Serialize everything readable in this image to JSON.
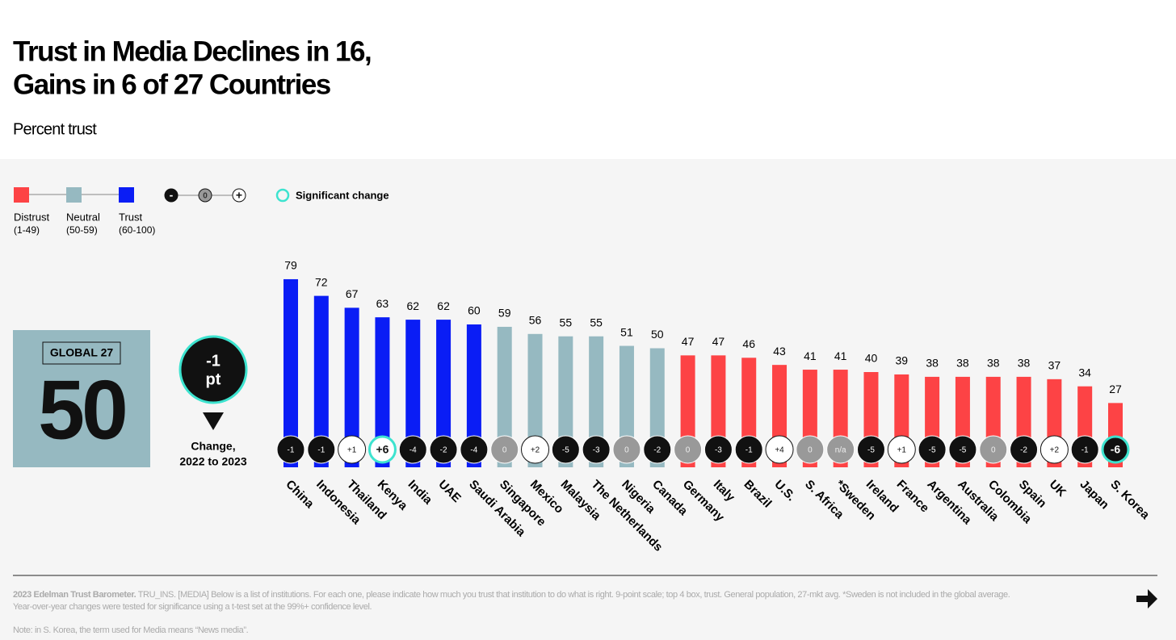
{
  "chart_data": {
    "type": "bar",
    "title_lines": [
      "Trust in Media Declines in 16,",
      "Gains in 6 of 27 Countries"
    ],
    "subtitle": "Percent trust",
    "legend": [
      {
        "name": "Distrust",
        "range": "(1-49)",
        "color": "#fd4345",
        "min": 1,
        "max": 49
      },
      {
        "name": "Neutral",
        "range": "(50-59)",
        "color": "#96b9c1",
        "min": 50,
        "max": 59
      },
      {
        "name": "Trust",
        "range": "(60-100)",
        "color": "#0a1df5",
        "min": 60,
        "max": 100
      }
    ],
    "change_legend": [
      "-",
      "0",
      "+"
    ],
    "significant_label": "Significant change",
    "significant_color": "#3de3cf",
    "global": {
      "label": "GLOBAL 27",
      "value": 50,
      "change": -1,
      "change_unit": "pt",
      "change_caption": [
        "Change,",
        "2022 to 2023"
      ]
    },
    "categories": [
      "China",
      "Indonesia",
      "Thailand",
      "Kenya",
      "India",
      "UAE",
      "Saudi Arabia",
      "Singapore",
      "Mexico",
      "Malaysia",
      "The Netherlands",
      "Nigeria",
      "Canada",
      "Germany",
      "Italy",
      "Brazil",
      "U.S.",
      "S. Africa",
      "*Sweden",
      "Ireland",
      "France",
      "Argentina",
      "Australia",
      "Colombia",
      "Spain",
      "UK",
      "Japan",
      "S. Korea"
    ],
    "values": [
      79,
      72,
      67,
      63,
      62,
      62,
      60,
      59,
      56,
      55,
      55,
      51,
      50,
      47,
      47,
      46,
      43,
      41,
      41,
      40,
      39,
      38,
      38,
      38,
      38,
      37,
      34,
      27
    ],
    "changes": [
      -1,
      -1,
      {
        "value": 1,
        "label": "+1"
      },
      {
        "value": 6,
        "label": "+6"
      },
      -4,
      -2,
      -4,
      0,
      {
        "value": 2,
        "label": "+2"
      },
      -5,
      -3,
      0,
      -2,
      0,
      -3,
      -1,
      {
        "value": 4,
        "label": "+4"
      },
      0,
      {
        "value": null,
        "label": "n/a"
      },
      -5,
      {
        "value": 1,
        "label": "+1"
      },
      -5,
      -5,
      0,
      -2,
      {
        "value": 2,
        "label": "+2"
      },
      -1,
      -6
    ],
    "significant": [
      false,
      false,
      false,
      true,
      false,
      false,
      false,
      false,
      false,
      false,
      false,
      false,
      false,
      false,
      false,
      false,
      false,
      false,
      false,
      false,
      false,
      false,
      false,
      false,
      false,
      false,
      false,
      true
    ],
    "footnote_bold": "2023 Edelman Trust Barometer.",
    "footnote": "TRU_INS. [MEDIA] Below is a list of institutions. For each one, please indicate how much you trust that institution to do what is right. 9-point scale; top 4 box, trust. General population, 27-mkt avg. *Sweden is not included in the global average. Year-over-year changes were tested for significance using a t-test set at the 99%+ confidence level.",
    "note": "Note: in S. Korea, the term used for Media means “News media”."
  }
}
